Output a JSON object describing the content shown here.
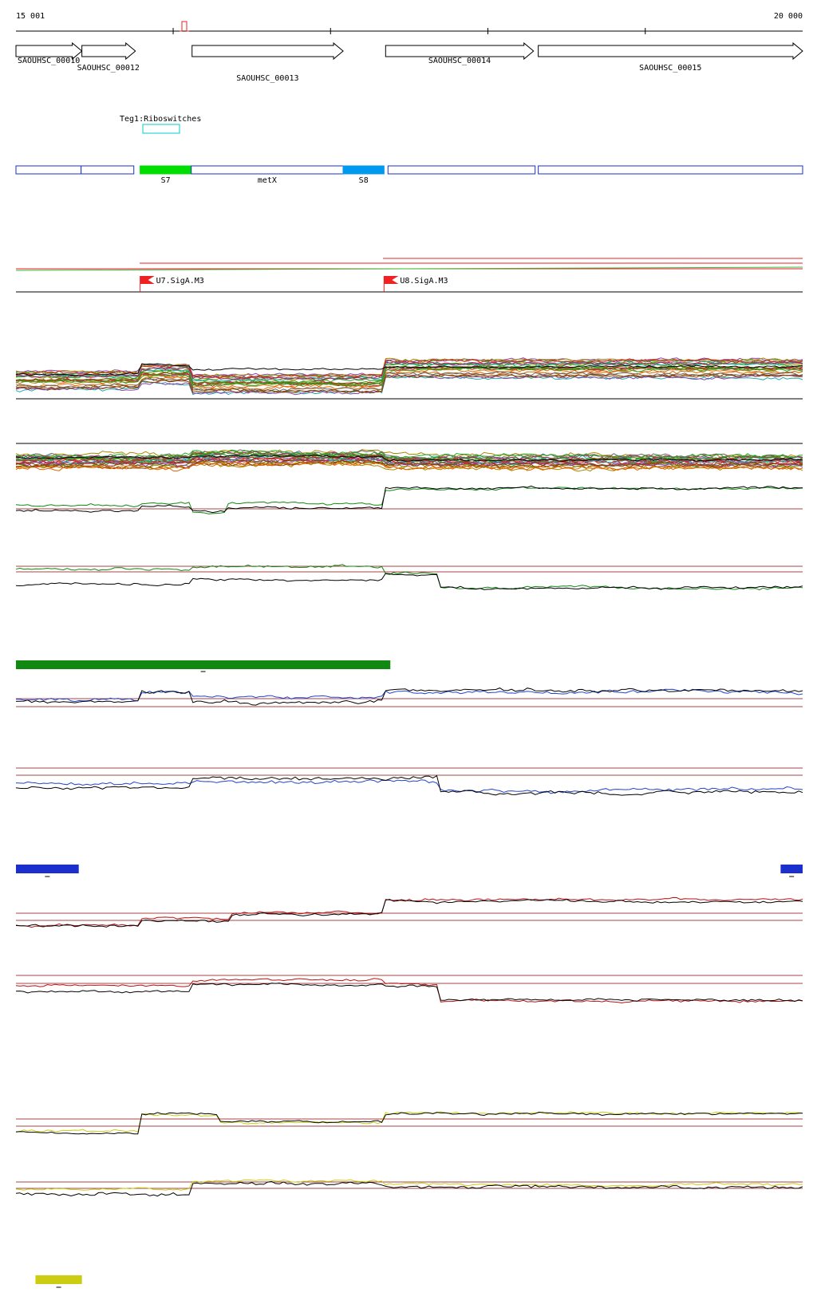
{
  "ruler": {
    "start_label": "15 001",
    "end_label": "20 000",
    "start": 15001,
    "end": 20000,
    "ticks": [
      16000,
      17000,
      18000,
      19000
    ]
  },
  "genes": [
    {
      "name": "SAOUHSC_00010",
      "start": 15001,
      "end": 15420
    },
    {
      "name": "SAOUHSC_00012",
      "start": 15420,
      "end": 15760
    },
    {
      "name": "SAOUHSC_00013",
      "start": 16120,
      "end": 17080
    },
    {
      "name": "SAOUHSC_00014",
      "start": 17350,
      "end": 18290
    },
    {
      "name": "SAOUHSC_00015",
      "start": 18320,
      "end": 20000
    }
  ],
  "teg_feature": {
    "label": "Teg1:Riboswitches",
    "start": 15800,
    "end": 16030
  },
  "segments": [
    {
      "label": "",
      "start": 15001,
      "end": 15415,
      "color": "#ffffff"
    },
    {
      "label": "",
      "start": 15415,
      "end": 15750,
      "color": "#ffffff"
    },
    {
      "label": "S7",
      "start": 15790,
      "end": 16115,
      "color": "#00dd00"
    },
    {
      "label": "metX",
      "start": 16115,
      "end": 17080,
      "color": "#ffffff"
    },
    {
      "label": "S8",
      "start": 17080,
      "end": 17340,
      "color": "#0099ee"
    },
    {
      "label": "",
      "start": 17365,
      "end": 18300,
      "color": "#ffffff"
    },
    {
      "label": "",
      "start": 18320,
      "end": 20000,
      "color": "#ffffff"
    }
  ],
  "promoters": [
    {
      "label": "U7.SigA.M3",
      "pos": 15790
    },
    {
      "label": "U8.SigA.M3",
      "pos": 17340
    }
  ],
  "colors": {
    "outline_blue": "#1a2fcc",
    "red": "#ee2222",
    "green": "#118811",
    "blue": "#2244cc",
    "dark_red": "#bb1111",
    "yellow": "#cccc11",
    "threshold": "#aa4444"
  },
  "condition_bars": [
    {
      "color": "#118811",
      "start": 15001,
      "end": 17380
    },
    {
      "color": "#1a2fcc",
      "start": 15001,
      "end": 15400
    },
    {
      "color": "#1a2fcc",
      "start": 19860,
      "end": 20000
    },
    {
      "color": "#cccc11",
      "start": 15125,
      "end": 15420
    }
  ]
}
